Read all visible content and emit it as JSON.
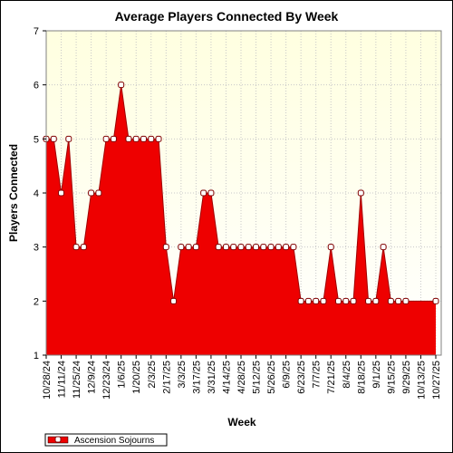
{
  "chart_data": {
    "type": "area",
    "title": "Average Players Connected By Week",
    "xlabel": "Week",
    "ylabel": "Players Connected",
    "ylim": [
      1,
      7
    ],
    "yticks": [
      1,
      2,
      3,
      4,
      5,
      6,
      7
    ],
    "grid": true,
    "legend_position": "bottom-left",
    "x_tick_labels": [
      "10/28/24",
      "11/11/24",
      "11/25/24",
      "12/9/24",
      "12/23/24",
      "1/6/25",
      "1/20/25",
      "2/3/25",
      "2/17/25",
      "3/3/25",
      "3/17/25",
      "3/31/25",
      "4/14/25",
      "4/28/25",
      "5/12/25",
      "5/26/25",
      "6/9/25",
      "6/23/25",
      "7/7/25",
      "7/21/25",
      "8/4/25",
      "8/18/25",
      "9/1/25",
      "9/15/25",
      "9/29/25",
      "10/13/25",
      "10/27/25"
    ],
    "series": [
      {
        "name": "Ascension Sojourns",
        "color": "#ee0000",
        "x": [
          "10/28/24",
          "11/4/24",
          "11/11/24",
          "11/18/24",
          "11/25/24",
          "12/2/24",
          "12/9/24",
          "12/16/24",
          "12/23/24",
          "12/30/24",
          "1/6/25",
          "1/13/25",
          "1/20/25",
          "1/27/25",
          "2/3/25",
          "2/10/25",
          "2/17/25",
          "2/24/25",
          "3/3/25",
          "3/10/25",
          "3/17/25",
          "3/24/25",
          "3/31/25",
          "4/7/25",
          "4/14/25",
          "4/21/25",
          "4/28/25",
          "5/5/25",
          "5/12/25",
          "5/19/25",
          "5/26/25",
          "6/2/25",
          "6/9/25",
          "6/16/25",
          "6/23/25",
          "6/30/25",
          "7/7/25",
          "7/14/25",
          "7/21/25",
          "7/28/25",
          "8/4/25",
          "8/11/25",
          "8/18/25",
          "8/25/25",
          "9/1/25",
          "9/8/25",
          "9/15/25",
          "9/22/25",
          "9/29/25",
          "10/27/25"
        ],
        "values": [
          5,
          5,
          4,
          5,
          3,
          3,
          4,
          4,
          5,
          5,
          6,
          5,
          5,
          5,
          5,
          5,
          3,
          2,
          3,
          3,
          3,
          4,
          4,
          3,
          3,
          3,
          3,
          3,
          3,
          3,
          3,
          3,
          3,
          3,
          2,
          2,
          2,
          2,
          3,
          2,
          2,
          2,
          4,
          2,
          2,
          3,
          2,
          2,
          2,
          2
        ]
      }
    ]
  }
}
